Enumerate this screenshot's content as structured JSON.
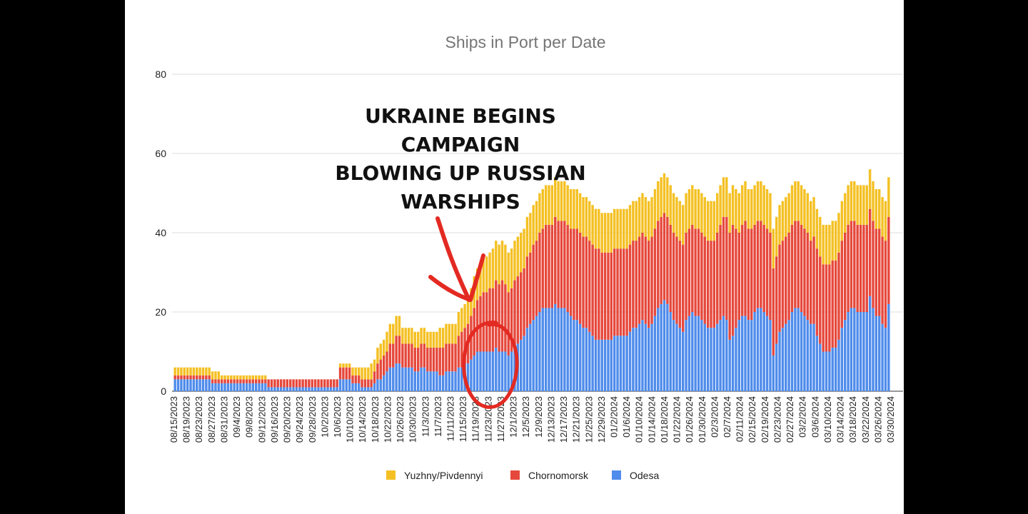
{
  "colors": {
    "Yuzhny/Pivdennyi": "#F4C023",
    "Chornomorsk": "#E6483C",
    "Odesa": "#4F8CEB",
    "title": "#757575",
    "axis_text": "#222222",
    "grid": "#DDDDDD",
    "annotation": "#E32A22"
  },
  "annotation": {
    "lines": [
      "UKRAINE BEGINS",
      "CAMPAIGN",
      "BLOWING UP RUSSIAN",
      "WARSHIPS"
    ],
    "marks": [
      "arrow",
      "circle"
    ]
  },
  "chart_data": {
    "type": "bar",
    "stacked": true,
    "title": "Ships in Port per Date",
    "xlabel": "",
    "ylabel": "",
    "ylim": [
      0,
      80
    ],
    "yticks": [
      0,
      20,
      40,
      60,
      80
    ],
    "grid": true,
    "legend_position": "bottom",
    "tick_labels": [
      "08/15/2023",
      "08/19/2023",
      "08/23/2023",
      "08/27/2023",
      "08/31/2023",
      "09/4/2023",
      "09/8/2023",
      "09/12/2023",
      "09/16/2023",
      "09/20/2023",
      "09/24/2023",
      "09/28/2023",
      "10/2/2023",
      "10/6/2023",
      "10/10/2023",
      "10/14/2023",
      "10/18/2023",
      "10/22/2023",
      "10/26/2023",
      "10/30/2023",
      "11/3/2023",
      "11/7/2023",
      "11/11/2023",
      "11/15/2023",
      "11/19/2023",
      "11/23/2023",
      "11/27/2023",
      "12/1/2023",
      "12/5/2023",
      "12/9/2023",
      "12/13/2023",
      "12/17/2023",
      "12/21/2023",
      "12/25/2023",
      "12/29/2023",
      "01/2/2024",
      "01/6/2024",
      "01/10/2024",
      "01/14/2024",
      "01/18/2024",
      "01/22/2024",
      "01/26/2024",
      "01/30/2024",
      "02/3/2024",
      "02/7/2024",
      "02/11/2024",
      "02/15/2024",
      "02/19/2024",
      "02/23/2024",
      "02/27/2024",
      "03/2/2024",
      "03/6/2024",
      "03/10/2024",
      "03/14/2024",
      "03/18/2024",
      "03/22/2024",
      "03/26/2024",
      "03/30/2024"
    ],
    "series": [
      {
        "name": "Odesa",
        "values": [
          3,
          3,
          3,
          3,
          3,
          3,
          3,
          3,
          3,
          3,
          3,
          3,
          2,
          2,
          2,
          2,
          2,
          2,
          2,
          2,
          2,
          2,
          2,
          2,
          2,
          2,
          2,
          2,
          2,
          2,
          1,
          1,
          1,
          1,
          1,
          1,
          1,
          1,
          1,
          1,
          1,
          1,
          1,
          1,
          1,
          1,
          1,
          1,
          1,
          1,
          1,
          1,
          1,
          3,
          3,
          3,
          3,
          2,
          2,
          2,
          1,
          1,
          1,
          1,
          2,
          3,
          3,
          4,
          5,
          6,
          6,
          7,
          7,
          6,
          6,
          6,
          6,
          5,
          5,
          6,
          6,
          5,
          5,
          5,
          5,
          4,
          4,
          5,
          5,
          5,
          5,
          6,
          6,
          7,
          7,
          8,
          9,
          10,
          10,
          10,
          10,
          10,
          10,
          11,
          10,
          10,
          10,
          9,
          10,
          12,
          12,
          13,
          14,
          16,
          17,
          18,
          19,
          20,
          21,
          21,
          21,
          21,
          22,
          21,
          21,
          21,
          20,
          19,
          18,
          18,
          17,
          16,
          16,
          15,
          14,
          13,
          13,
          13,
          13,
          13,
          13,
          14,
          14,
          14,
          14,
          14,
          15,
          16,
          16,
          17,
          18,
          17,
          16,
          17,
          19,
          21,
          22,
          23,
          22,
          20,
          18,
          17,
          16,
          15,
          18,
          19,
          20,
          19,
          19,
          18,
          17,
          16,
          16,
          16,
          17,
          18,
          19,
          18,
          13,
          14,
          16,
          18,
          19,
          19,
          18,
          18,
          20,
          21,
          21,
          20,
          19,
          18,
          9,
          12,
          15,
          16,
          17,
          18,
          20,
          21,
          21,
          20,
          19,
          18,
          17,
          17,
          14,
          12,
          10,
          10,
          10,
          11,
          11,
          13,
          16,
          18,
          20,
          21,
          21,
          20,
          20,
          20,
          20,
          24,
          21,
          19,
          19,
          17,
          16,
          22
        ]
      },
      {
        "name": "Chornomorsk",
        "values": [
          1,
          1,
          1,
          1,
          1,
          1,
          1,
          1,
          1,
          1,
          1,
          1,
          1,
          1,
          1,
          1,
          1,
          1,
          1,
          1,
          1,
          1,
          1,
          1,
          1,
          1,
          1,
          1,
          1,
          1,
          2,
          2,
          2,
          2,
          2,
          2,
          2,
          2,
          2,
          2,
          2,
          2,
          2,
          2,
          2,
          2,
          2,
          2,
          2,
          2,
          2,
          2,
          2,
          3,
          3,
          3,
          3,
          2,
          2,
          2,
          2,
          2,
          2,
          2,
          3,
          4,
          5,
          5,
          5,
          6,
          6,
          7,
          7,
          6,
          6,
          6,
          6,
          6,
          6,
          6,
          6,
          6,
          6,
          6,
          6,
          7,
          7,
          7,
          7,
          7,
          7,
          8,
          9,
          9,
          10,
          11,
          12,
          13,
          14,
          15,
          15,
          16,
          16,
          17,
          17,
          18,
          17,
          16,
          16,
          16,
          17,
          17,
          17,
          18,
          18,
          19,
          19,
          20,
          20,
          21,
          21,
          21,
          22,
          22,
          22,
          22,
          22,
          22,
          23,
          23,
          23,
          23,
          23,
          23,
          23,
          23,
          23,
          22,
          22,
          22,
          22,
          22,
          22,
          22,
          22,
          22,
          22,
          22,
          22,
          22,
          22,
          22,
          22,
          22,
          22,
          22,
          22,
          22,
          22,
          22,
          22,
          22,
          22,
          22,
          22,
          22,
          22,
          22,
          22,
          22,
          22,
          22,
          22,
          22,
          23,
          24,
          25,
          26,
          27,
          28,
          25,
          22,
          23,
          24,
          23,
          23,
          22,
          22,
          22,
          22,
          22,
          22,
          22,
          22,
          22,
          22,
          22,
          22,
          22,
          22,
          22,
          22,
          22,
          22,
          21,
          22,
          22,
          22,
          22,
          22,
          22,
          22,
          22,
          22,
          22,
          22,
          22,
          22,
          22,
          22,
          22,
          22,
          22,
          22,
          22,
          22,
          22,
          22,
          22,
          22,
          22,
          22,
          22
        ]
      },
      {
        "name": "Yuzhny/Pivdennyi",
        "values": [
          2,
          2,
          2,
          2,
          2,
          2,
          2,
          2,
          2,
          2,
          2,
          2,
          2,
          2,
          2,
          1,
          1,
          1,
          1,
          1,
          1,
          1,
          1,
          1,
          1,
          1,
          1,
          1,
          1,
          1,
          0,
          0,
          0,
          0,
          0,
          0,
          0,
          0,
          0,
          0,
          0,
          0,
          0,
          0,
          0,
          0,
          0,
          0,
          0,
          0,
          0,
          0,
          0,
          1,
          1,
          1,
          1,
          2,
          2,
          2,
          3,
          3,
          3,
          4,
          3,
          4,
          4,
          4,
          5,
          5,
          5,
          5,
          5,
          4,
          4,
          4,
          4,
          4,
          4,
          4,
          4,
          4,
          4,
          4,
          4,
          5,
          5,
          5,
          5,
          5,
          5,
          6,
          6,
          6,
          7,
          7,
          8,
          8,
          8,
          9,
          9,
          9,
          10,
          10,
          10,
          10,
          10,
          10,
          10,
          10,
          10,
          10,
          10,
          10,
          10,
          10,
          10,
          10,
          10,
          10,
          10,
          10,
          10,
          10,
          10,
          10,
          10,
          10,
          10,
          10,
          10,
          10,
          10,
          10,
          10,
          10,
          10,
          10,
          10,
          10,
          10,
          10,
          10,
          10,
          10,
          10,
          10,
          10,
          10,
          10,
          10,
          10,
          10,
          10,
          10,
          10,
          10,
          10,
          10,
          10,
          10,
          10,
          10,
          10,
          10,
          10,
          10,
          10,
          10,
          10,
          10,
          10,
          10,
          10,
          10,
          10,
          10,
          10,
          10,
          10,
          10,
          10,
          10,
          10,
          10,
          10,
          10,
          10,
          10,
          10,
          10,
          10,
          10,
          10,
          10,
          10,
          10,
          10,
          10,
          10,
          10,
          10,
          10,
          10,
          10,
          10,
          10,
          10,
          10,
          10,
          10,
          10,
          10,
          10,
          10,
          10,
          10,
          10,
          10,
          10,
          10,
          10,
          10,
          10,
          10,
          10,
          10,
          10,
          10,
          10,
          10,
          10
        ]
      }
    ]
  }
}
